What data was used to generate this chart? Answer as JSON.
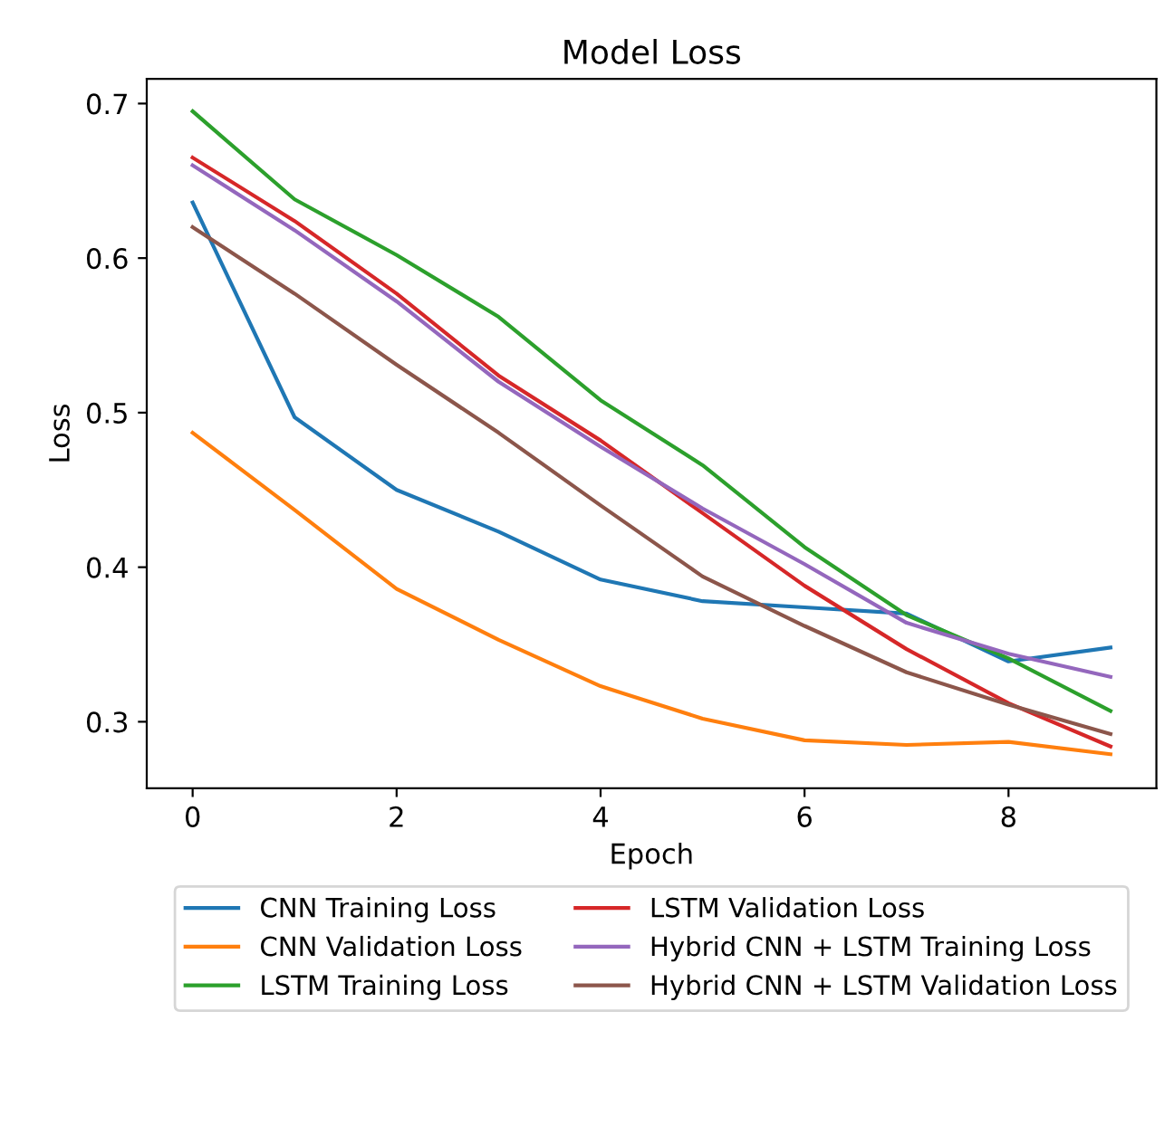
{
  "chart_data": {
    "type": "line",
    "title": "Model Loss",
    "xlabel": "Epoch",
    "ylabel": "Loss",
    "x": [
      0,
      1,
      2,
      3,
      4,
      5,
      6,
      7,
      8,
      9
    ],
    "xlim": [
      -0.45,
      9.45
    ],
    "xticks": [
      0,
      2,
      4,
      6,
      8
    ],
    "ylim": [
      0.257,
      0.716
    ],
    "yticks": [
      0.3,
      0.4,
      0.5,
      0.6,
      0.7
    ],
    "legend": "bottom",
    "grid": false,
    "series": [
      {
        "name": "CNN Training Loss",
        "color": "#1f77b4",
        "values": [
          0.636,
          0.497,
          0.45,
          0.423,
          0.392,
          0.378,
          0.374,
          0.37,
          0.339,
          0.348
        ]
      },
      {
        "name": "CNN Validation Loss",
        "color": "#ff7f0e",
        "values": [
          0.487,
          0.437,
          0.386,
          0.353,
          0.323,
          0.302,
          0.288,
          0.285,
          0.287,
          0.279
        ]
      },
      {
        "name": "LSTM Training Loss",
        "color": "#2ca02c",
        "values": [
          0.695,
          0.638,
          0.602,
          0.562,
          0.508,
          0.466,
          0.413,
          0.369,
          0.341,
          0.307
        ]
      },
      {
        "name": "LSTM Validation Loss",
        "color": "#d62728",
        "values": [
          0.665,
          0.624,
          0.577,
          0.524,
          0.482,
          0.435,
          0.388,
          0.347,
          0.312,
          0.284
        ]
      },
      {
        "name": "Hybrid CNN + LSTM Training Loss",
        "color": "#9467bd",
        "values": [
          0.66,
          0.618,
          0.572,
          0.52,
          0.478,
          0.438,
          0.402,
          0.364,
          0.344,
          0.329
        ]
      },
      {
        "name": "Hybrid CNN + LSTM Validation Loss",
        "color": "#8c564b",
        "values": [
          0.62,
          0.577,
          0.531,
          0.487,
          0.44,
          0.394,
          0.362,
          0.332,
          0.311,
          0.292
        ]
      }
    ]
  }
}
